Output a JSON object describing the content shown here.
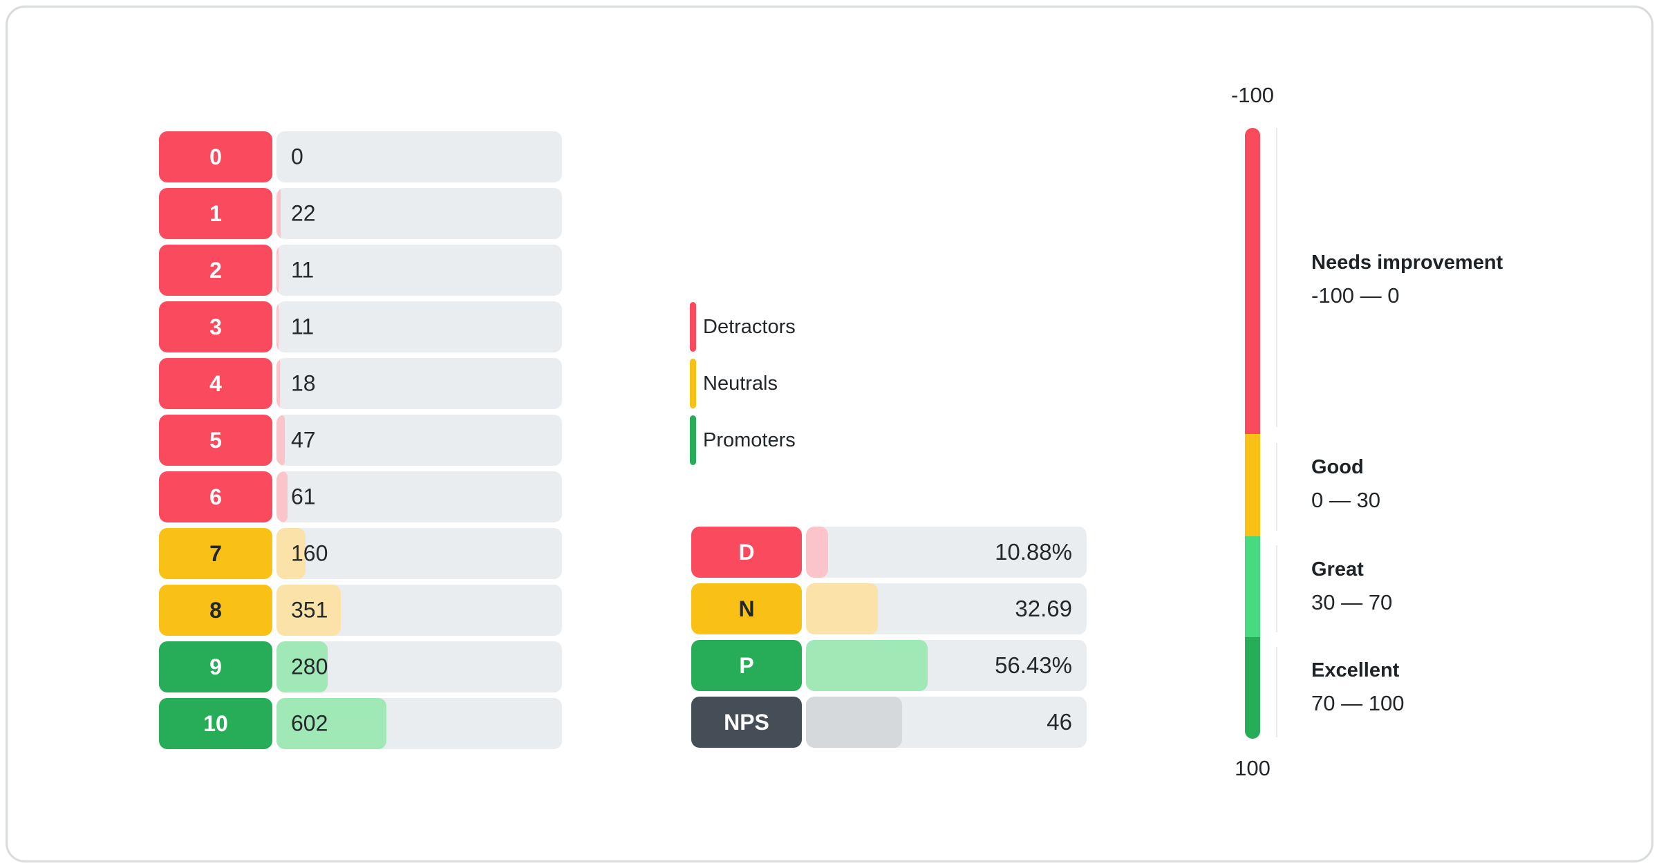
{
  "chart_data": [
    {
      "type": "bar",
      "orientation": "horizontal",
      "categories": [
        "0",
        "1",
        "2",
        "3",
        "4",
        "5",
        "6",
        "7",
        "8",
        "9",
        "10"
      ],
      "values": [
        0,
        22,
        11,
        11,
        18,
        47,
        61,
        160,
        351,
        280,
        602
      ],
      "groups": [
        "detractor",
        "detractor",
        "detractor",
        "detractor",
        "detractor",
        "detractor",
        "detractor",
        "neutral",
        "neutral",
        "promoter",
        "promoter"
      ],
      "legend": [
        "Detractors",
        "Neutrals",
        "Promoters"
      ],
      "legend_position": "right"
    },
    {
      "type": "bar",
      "orientation": "horizontal",
      "categories": [
        "D",
        "N",
        "P",
        "NPS"
      ],
      "values": [
        10.88,
        32.69,
        56.43,
        46
      ],
      "value_labels": [
        "10.88%",
        "32.69",
        "56.43%",
        "46"
      ]
    },
    {
      "type": "gauge",
      "min": -100,
      "max": 100,
      "zones": [
        {
          "label": "Needs improvement",
          "from": -100,
          "to": 0
        },
        {
          "label": "Good",
          "from": 0,
          "to": 30
        },
        {
          "label": "Great",
          "from": 30,
          "to": 70
        },
        {
          "label": "Excellent",
          "from": 70,
          "to": 100
        }
      ]
    }
  ],
  "histogram": {
    "rows": [
      {
        "score": "0",
        "count": "0",
        "group": "detractor",
        "fill_pct": 0
      },
      {
        "score": "1",
        "count": "22",
        "group": "detractor",
        "fill_pct": 1.41
      },
      {
        "score": "2",
        "count": "11",
        "group": "detractor",
        "fill_pct": 0.7
      },
      {
        "score": "3",
        "count": "11",
        "group": "detractor",
        "fill_pct": 0.7
      },
      {
        "score": "4",
        "count": "18",
        "group": "detractor",
        "fill_pct": 1.15
      },
      {
        "score": "5",
        "count": "47",
        "group": "detractor",
        "fill_pct": 3.01
      },
      {
        "score": "6",
        "count": "61",
        "group": "detractor",
        "fill_pct": 3.9
      },
      {
        "score": "7",
        "count": "160",
        "group": "neutral",
        "fill_pct": 10.24
      },
      {
        "score": "8",
        "count": "351",
        "group": "neutral",
        "fill_pct": 22.46
      },
      {
        "score": "9",
        "count": "280",
        "group": "promoter",
        "fill_pct": 17.91
      },
      {
        "score": "10",
        "count": "602",
        "group": "promoter",
        "fill_pct": 38.52
      }
    ]
  },
  "legend": {
    "items": [
      {
        "label": "Detractors",
        "color": "#fa4a5e"
      },
      {
        "label": "Neutrals",
        "color": "#f9c116"
      },
      {
        "label": "Promoters",
        "color": "#27ad58"
      }
    ]
  },
  "summary": {
    "rows": [
      {
        "label": "D",
        "value": "10.88%",
        "group": "detractor",
        "fill_pct": 7.9
      },
      {
        "label": "N",
        "value": "32.69",
        "group": "neutral",
        "fill_pct": 25.5
      },
      {
        "label": "P",
        "value": "56.43%",
        "group": "promoter",
        "fill_pct": 43.3
      },
      {
        "label": "NPS",
        "value": "46",
        "group": "nps",
        "fill_pct": 34.2
      }
    ]
  },
  "gauge": {
    "top_label": "-100",
    "bottom_label": "100",
    "zones": [
      {
        "title": "Needs improvement",
        "range": "-100 — 0",
        "color": "#fa4a5e",
        "height_pct": 50.1
      },
      {
        "title": "Good",
        "range": "0 — 30",
        "color": "#f9c116",
        "height_pct": 16.7
      },
      {
        "title": "Great",
        "range": "30 — 70",
        "color": "#48da81",
        "height_pct": 16.6
      },
      {
        "title": "Excellent",
        "range": "70 — 100",
        "color": "#27ad58",
        "height_pct": 16.6
      }
    ]
  },
  "colors": {
    "detractor": "#fa4a5e",
    "detractor_light": "#fbc4ca",
    "neutral": "#f9c116",
    "neutral_light": "#fbe2a9",
    "promoter": "#27ad58",
    "promoter_light": "#a0e8b6",
    "nps": "#454d57",
    "nps_light": "#d5d9dc",
    "gauge_great": "#48da81",
    "track": "#eaedf0",
    "axis_line": "#e9ecef",
    "card_border": "#d8dcdf",
    "text": "#22272b"
  }
}
